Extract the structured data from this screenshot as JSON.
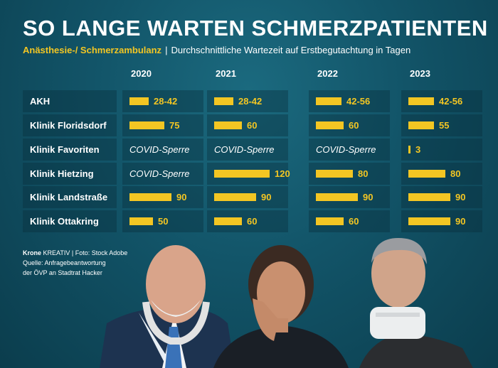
{
  "title": "SO LANGE WARTEN SCHMERZPATIENTEN",
  "subtitle": {
    "highlight": "Anästhesie-/ Schmerzambulanz",
    "separator": "|",
    "text": "Durchschnittliche Wartezeit auf Erstbegutachtung in Tagen"
  },
  "credits": {
    "brand": "Krone",
    "brand_suffix": "KREATIV",
    "separator": "|",
    "photo": "Foto: Stock Adobe",
    "source_line1": "Quelle: Anfragebeantwortung",
    "source_line2": "der ÖVP an Stadtrat Hacker"
  },
  "colors": {
    "bar": "#f3c623",
    "background": "#125468",
    "text": "#ffffff"
  },
  "chart_data": {
    "type": "bar",
    "title": "SO LANGE WARTEN SCHMERZPATIENTEN",
    "unit": "Tagen",
    "years": [
      "2020",
      "2021",
      "2022",
      "2023"
    ],
    "categories": [
      "AKH",
      "Klinik Floridsdorf",
      "Klinik Favoriten",
      "Klinik Hietzing",
      "Klinik Landstraße",
      "Klinik Ottakring"
    ],
    "series": [
      {
        "name": "2020",
        "values": [
          42,
          75,
          null,
          null,
          90,
          50
        ],
        "labels": [
          "28-42",
          "75",
          "COVID-Sperre",
          "COVID-Sperre",
          "90",
          "50"
        ]
      },
      {
        "name": "2021",
        "values": [
          42,
          60,
          null,
          120,
          90,
          60
        ],
        "labels": [
          "28-42",
          "60",
          "COVID-Sperre",
          "120",
          "90",
          "60"
        ]
      },
      {
        "name": "2022",
        "values": [
          56,
          60,
          null,
          80,
          90,
          60
        ],
        "labels": [
          "42-56",
          "60",
          "COVID-Sperre",
          "80",
          "90",
          "60"
        ]
      },
      {
        "name": "2023",
        "values": [
          56,
          55,
          3,
          80,
          90,
          90
        ],
        "labels": [
          "42-56",
          "55",
          "3",
          "80",
          "90",
          "90"
        ]
      }
    ]
  }
}
